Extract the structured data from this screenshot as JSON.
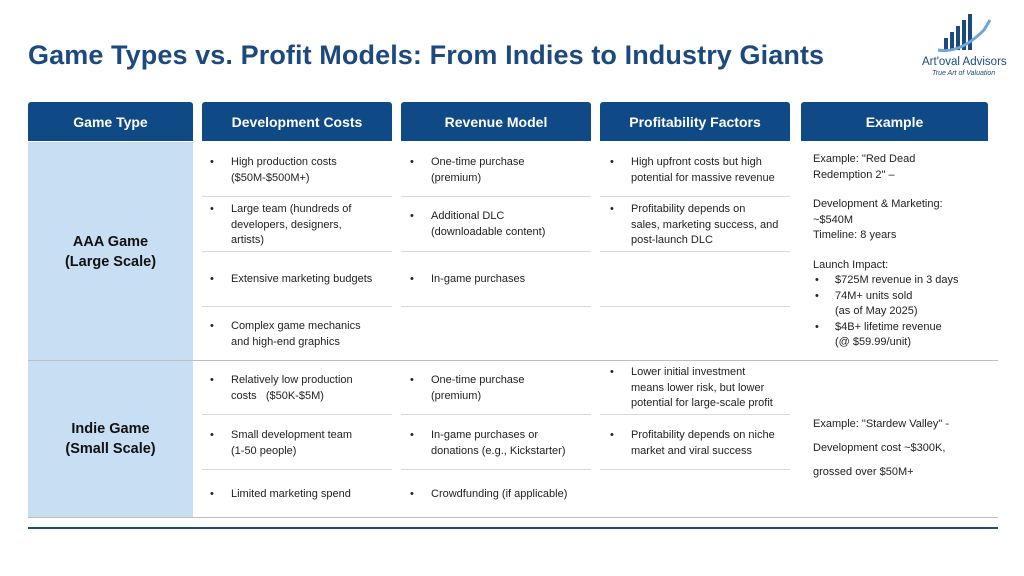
{
  "title": "Game Types vs. Profit Models: From Indies to Industry Giants",
  "logo": {
    "name": "Art'oval Advisors",
    "tagline": "True Art of Valuation",
    "icon": "bar-chart-swoosh-icon"
  },
  "headers": [
    "Game Type",
    "Development Costs",
    "Revenue Model",
    "Profitability Factors",
    "Example"
  ],
  "rows": {
    "aaa": {
      "type": [
        "AAA Game",
        "(Large Scale)"
      ],
      "dev": [
        [
          "High production costs",
          "($50M-$500M+)"
        ],
        [
          "Large team (hundreds of",
          "developers, designers,",
          "artists)"
        ],
        [
          "Extensive marketing budgets"
        ],
        [
          "Complex game mechanics",
          "and high-end graphics"
        ]
      ],
      "rev": [
        [
          "One-time purchase",
          "(premium)"
        ],
        [
          "Additional DLC",
          "(downloadable content)"
        ],
        [
          "In-game purchases"
        ]
      ],
      "prof": [
        [
          "High upfront costs but high",
          "potential for massive revenue"
        ],
        [
          "Profitability depends on",
          "sales, marketing success, and",
          "post-launch DLC"
        ]
      ],
      "example": {
        "l1": "Example: \"Red Dead",
        "l2": "Redemption 2\" –",
        "l3": "Development & Marketing:",
        "l4": "~$540M",
        "l5": "Timeline: 8 years",
        "l6": "Launch Impact:",
        "b1": "$725M revenue in 3 days",
        "b2a": "74M+ units sold",
        "b2b": "(as of May 2025)",
        "b3a": "$4B+ lifetime revenue",
        "b3b": "(@ $59.99/unit)"
      }
    },
    "indie": {
      "type": [
        "Indie Game",
        "(Small Scale)"
      ],
      "dev": [
        [
          "Relatively low production",
          "costs   ($50K-$5M)"
        ],
        [
          "Small development team",
          "(1-50 people)"
        ],
        [
          "Limited marketing spend"
        ]
      ],
      "rev": [
        [
          "One-time purchase",
          "(premium)"
        ],
        [
          "In-game purchases or",
          "donations (e.g., Kickstarter)"
        ],
        [
          "Crowdfunding (if applicable)"
        ]
      ],
      "prof": [
        [
          "Lower initial investment",
          "means lower risk, but lower",
          "potential for large-scale profit"
        ],
        [
          "Profitability depends on niche",
          "market and viral success"
        ]
      ],
      "example": {
        "l1": "Example: \"Stardew Valley\" -",
        "l2": "Development cost ~$300K,",
        "l3": "grossed over $50M+"
      }
    }
  },
  "bullet": "•",
  "colors": {
    "header": "#0f4a86",
    "title": "#1d4a7e",
    "shade": "#c7def3"
  }
}
